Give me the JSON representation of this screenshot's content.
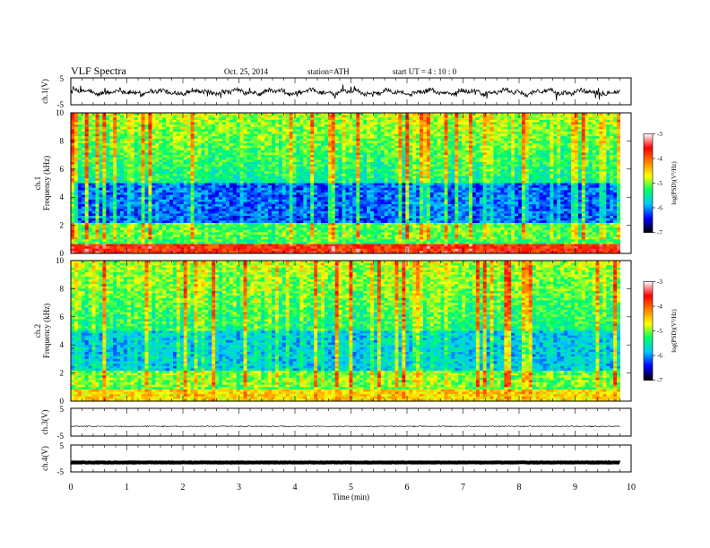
{
  "header": {
    "title": "VLF  Spectra",
    "date": "Oct. 25, 2014",
    "station": "station=ATH",
    "start": "start  UT  =   4  : 10 : 0"
  },
  "chart_data": [
    {
      "type": "line",
      "panel": "ch1-waveform",
      "ylabel": "ch.1(V)",
      "ylim": [
        -5,
        5
      ],
      "yticks": [
        "5",
        "-5"
      ],
      "xlim": [
        0,
        10
      ],
      "trace_extent_min": 9.8,
      "baseline_v": -0.3,
      "description_color": "#000000"
    },
    {
      "type": "heatmap",
      "panel": "ch1-spectrogram",
      "ylabel_top": "ch.1",
      "ylabel": "Frequency  (kHz)",
      "ylim": [
        0,
        10
      ],
      "yticks": [
        "0",
        "2",
        "4",
        "6",
        "8",
        "10"
      ],
      "xlim": [
        0,
        10
      ],
      "colorbar": {
        "label": "log(PSD)(V²/Hz)",
        "range": [
          -7,
          -3
        ],
        "ticks": [
          "-3",
          "-4",
          "-5",
          "-6",
          "-7"
        ]
      },
      "colormap": [
        "#000000",
        "#0000ff",
        "#00c8ff",
        "#00ff64",
        "#ffff00",
        "#ff8000",
        "#ff0000",
        "#ffffff"
      ]
    },
    {
      "type": "heatmap",
      "panel": "ch2-spectrogram",
      "ylabel_top": "ch.2",
      "ylabel": "Frequency  (kHz)",
      "ylim": [
        0,
        10
      ],
      "yticks": [
        "0",
        "2",
        "4",
        "6",
        "8",
        "10"
      ],
      "xlim": [
        0,
        10
      ],
      "colorbar": {
        "label": "log(PSD)(V²/Hz)",
        "range": [
          -7,
          -3
        ],
        "ticks": [
          "-3",
          "-4",
          "-5",
          "-6",
          "-7"
        ]
      }
    },
    {
      "type": "line",
      "panel": "ch3-waveform",
      "ylabel": "ch.3(V)",
      "ylim": [
        -5,
        5
      ],
      "yticks": [
        "5",
        "-5"
      ],
      "baseline_v": -1.5
    },
    {
      "type": "line",
      "panel": "ch4-waveform",
      "ylabel": "ch.4(V)",
      "ylim": [
        -5,
        5
      ],
      "yticks": [
        "5",
        "-5"
      ],
      "baseline_v": -1.5,
      "xlabel": "Time  (min)",
      "xticks": [
        "0",
        "1",
        "2",
        "3",
        "4",
        "5",
        "6",
        "7",
        "8",
        "9",
        "10"
      ],
      "xlim": [
        0,
        10
      ]
    }
  ]
}
